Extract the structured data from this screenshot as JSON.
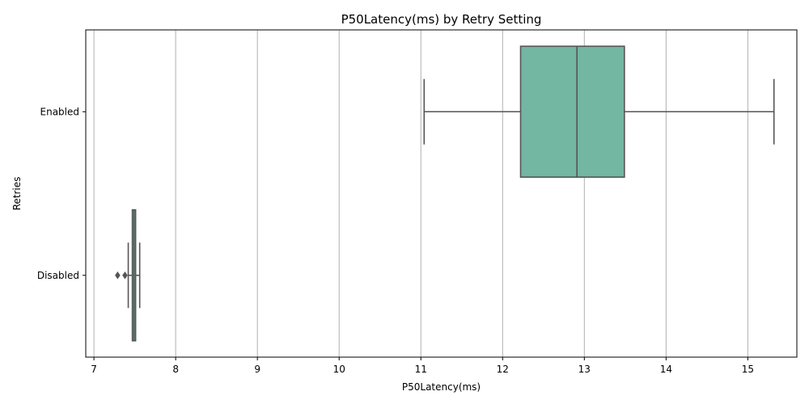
{
  "chart_data": {
    "type": "boxplot",
    "orientation": "horizontal",
    "title": "P50Latency(ms) by Retry Setting",
    "xlabel": "P50Latency(ms)",
    "ylabel": "Retries",
    "xlim": [
      6.9,
      15.6
    ],
    "xticks": [
      7,
      8,
      9,
      10,
      11,
      12,
      13,
      14,
      15
    ],
    "grid": {
      "x": true,
      "y": false
    },
    "categories": [
      "Enabled",
      "Disabled"
    ],
    "series": [
      {
        "category": "Enabled",
        "whisker_low": 11.04,
        "q1": 12.22,
        "median": 12.91,
        "q3": 13.49,
        "whisker_high": 15.32,
        "outliers": [],
        "color": "#73b6a1"
      },
      {
        "category": "Disabled",
        "whisker_low": 7.42,
        "q1": 7.47,
        "median": 7.49,
        "q3": 7.51,
        "whisker_high": 7.56,
        "outliers": [
          7.29,
          7.38
        ],
        "color": "#73b6a1"
      }
    ],
    "colors": {
      "box_edge": "#555555",
      "grid": "#b0b0b0",
      "axis": "#000000"
    }
  }
}
